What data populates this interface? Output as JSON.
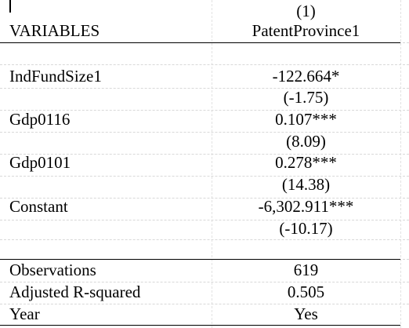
{
  "header": {
    "model_number": "(1)",
    "variables_label": "VARIABLES",
    "dependent_variable": "PatentProvince1"
  },
  "rows": [
    {
      "label": "IndFundSize1",
      "coef": "-122.664*",
      "tstat": "(-1.75)"
    },
    {
      "label": "Gdp0116",
      "coef": "0.107***",
      "tstat": "(8.09)"
    },
    {
      "label": "Gdp0101",
      "coef": "0.278***",
      "tstat": "(14.38)"
    },
    {
      "label": "Constant",
      "coef": "-6,302.911***",
      "tstat": "(-10.17)"
    }
  ],
  "stats": [
    {
      "label": "Observations",
      "value": "619"
    },
    {
      "label": "Adjusted R-squared",
      "value": "0.505"
    },
    {
      "label": "Year",
      "value": "Yes"
    }
  ]
}
